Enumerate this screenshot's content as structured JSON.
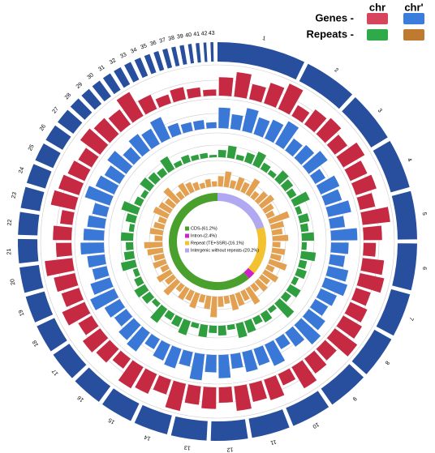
{
  "chart_data": [
    {
      "type": "circos",
      "legend": {
        "columns": [
          "chr",
          "chr'"
        ],
        "rows": [
          {
            "label": "Genes -",
            "colors": [
              "#d6455c",
              "#3b7ddd"
            ]
          },
          {
            "label": "Repeats -",
            "colors": [
              "#2eaa4a",
              "#c07a30"
            ]
          }
        ]
      },
      "ideogram_color": "#274f9e",
      "chromosomes": [
        {
          "name": "1",
          "size": 125
        },
        {
          "name": "2",
          "size": 75
        },
        {
          "name": "3",
          "size": 72
        },
        {
          "name": "4",
          "size": 70
        },
        {
          "name": "5",
          "size": 68
        },
        {
          "name": "6",
          "size": 66
        },
        {
          "name": "7",
          "size": 62
        },
        {
          "name": "8",
          "size": 60
        },
        {
          "name": "9",
          "size": 58
        },
        {
          "name": "10",
          "size": 56
        },
        {
          "name": "11",
          "size": 54
        },
        {
          "name": "12",
          "size": 52
        },
        {
          "name": "13",
          "size": 50
        },
        {
          "name": "14",
          "size": 48
        },
        {
          "name": "15",
          "size": 46
        },
        {
          "name": "16",
          "size": 44
        },
        {
          "name": "17",
          "size": 42
        },
        {
          "name": "18",
          "size": 40
        },
        {
          "name": "19",
          "size": 38
        },
        {
          "name": "20",
          "size": 36
        },
        {
          "name": "21",
          "size": 34
        },
        {
          "name": "22",
          "size": 32
        },
        {
          "name": "23",
          "size": 30
        },
        {
          "name": "24",
          "size": 28
        },
        {
          "name": "25",
          "size": 26
        },
        {
          "name": "26",
          "size": 24
        },
        {
          "name": "27",
          "size": 22
        },
        {
          "name": "28",
          "size": 16
        },
        {
          "name": "29",
          "size": 14
        },
        {
          "name": "30",
          "size": 13
        },
        {
          "name": "31",
          "size": 12
        },
        {
          "name": "32",
          "size": 11
        },
        {
          "name": "33",
          "size": 10
        },
        {
          "name": "34",
          "size": 9
        },
        {
          "name": "35",
          "size": 8
        },
        {
          "name": "36",
          "size": 7
        },
        {
          "name": "37",
          "size": 7
        },
        {
          "name": "38",
          "size": 6
        },
        {
          "name": "39",
          "size": 6
        },
        {
          "name": "40",
          "size": 5
        },
        {
          "name": "41",
          "size": 5
        },
        {
          "name": "42",
          "size": 4
        },
        {
          "name": "43",
          "size": 4
        }
      ],
      "ylim": [
        0,
        1
      ],
      "series": [
        {
          "name": "Genes chr",
          "color": "#c62a42",
          "values": [
            0.6,
            0.8,
            0.5,
            0.7,
            0.9,
            0.4,
            0.6,
            0.7,
            0.5,
            0.8,
            0.6,
            0.7,
            0.5,
            0.9,
            0.6,
            0.4,
            0.7,
            0.8,
            0.5,
            0.6,
            0.7,
            0.9,
            0.5,
            0.6,
            0.8,
            0.4,
            0.7,
            0.6,
            0.8,
            0.5,
            0.7,
            0.6,
            0.9,
            0.5,
            0.7,
            0.8,
            0.4,
            0.6,
            0.7,
            0.5,
            0.8,
            0.6,
            0.7,
            0.9,
            0.5,
            0.6,
            0.4,
            0.8,
            0.7,
            0.6,
            0.5,
            0.8,
            0.7,
            0.6,
            0.9,
            0.5,
            0.3,
            0.4,
            0.3,
            0.2
          ]
        },
        {
          "name": "Genes chr'",
          "color": "#3a78d8",
          "values": [
            0.7,
            0.5,
            0.8,
            0.6,
            0.7,
            0.9,
            0.5,
            0.6,
            0.8,
            0.4,
            0.7,
            0.6,
            0.8,
            0.5,
            0.9,
            0.6,
            0.5,
            0.7,
            0.8,
            0.6,
            0.5,
            0.7,
            0.9,
            0.6,
            0.4,
            0.8,
            0.6,
            0.7,
            0.5,
            0.8,
            0.6,
            0.9,
            0.5,
            0.7,
            0.6,
            0.4,
            0.8,
            0.7,
            0.5,
            0.6,
            0.9,
            0.7,
            0.5,
            0.6,
            0.8,
            0.7,
            0.6,
            0.5,
            0.9,
            0.7,
            0.6,
            0.8,
            0.5,
            0.7,
            0.6,
            0.8,
            0.4,
            0.3,
            0.3,
            0.2
          ]
        },
        {
          "name": "Repeats chr",
          "color": "#2e9e3e",
          "values": [
            0.3,
            0.5,
            0.2,
            0.4,
            0.6,
            0.3,
            0.2,
            0.5,
            0.4,
            0.3,
            0.7,
            0.2,
            0.4,
            0.3,
            0.5,
            0.2,
            0.6,
            0.3,
            0.4,
            0.2,
            0.5,
            0.3,
            0.8,
            0.2,
            0.4,
            0.3,
            0.5,
            0.6,
            0.2,
            0.4,
            0.3,
            0.5,
            0.2,
            0.6,
            0.4,
            0.3,
            0.7,
            0.2,
            0.4,
            0.5,
            0.3,
            0.2,
            0.6,
            0.4,
            0.3,
            0.5,
            0.2,
            0.4,
            0.7,
            0.3,
            0.2,
            0.5,
            0.4,
            0.3,
            0.6,
            0.2,
            0.3,
            0.2,
            0.2,
            0.1
          ]
        },
        {
          "name": "Repeats chr'",
          "color": "#e2a050",
          "values": [
            0.4,
            0.6,
            0.3,
            0.5,
            0.4,
            0.7,
            0.3,
            0.5,
            0.6,
            0.4,
            0.3,
            0.8,
            0.5,
            0.4,
            0.6,
            0.3,
            0.5,
            0.4,
            0.7,
            0.3,
            0.6,
            0.4,
            0.5,
            0.3,
            0.7,
            0.4,
            0.5,
            0.6,
            0.3,
            0.4,
            0.8,
            0.5,
            0.3,
            0.6,
            0.4,
            0.5,
            0.3,
            0.7,
            0.4,
            0.6,
            0.3,
            0.5,
            0.4,
            0.6,
            0.7,
            0.3,
            0.5,
            0.4,
            0.3,
            0.6,
            0.5,
            0.4,
            0.7,
            0.3,
            0.5,
            0.4,
            0.3,
            0.2,
            0.3,
            0.2
          ]
        }
      ]
    },
    {
      "type": "pie",
      "categories": [
        "CDS-(61.2%)",
        "Intron-(2.4%)",
        "Repeat (TE+SSR)-(16.1%)",
        "Intergenic without repeats-(20.2%)"
      ],
      "values": [
        61.2,
        2.4,
        16.1,
        20.2
      ],
      "colors": [
        "#4aa02c",
        "#d020c8",
        "#f2c230",
        "#b0a8f0"
      ]
    }
  ]
}
